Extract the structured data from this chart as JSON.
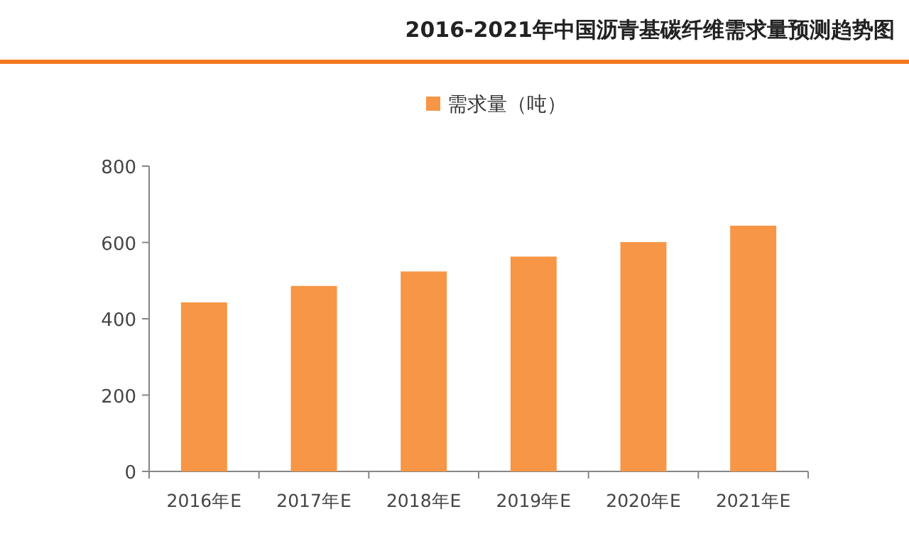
{
  "chart_data": {
    "type": "bar",
    "title": "2016-2021年中国沥青基碳纤维需求量预测趋势图",
    "categories": [
      "2016年E",
      "2017年E",
      "2018年E",
      "2019年E",
      "2020年E",
      "2021年E"
    ],
    "series": [
      {
        "name": "需求量（吨）",
        "color": "#f79646",
        "values": [
          443,
          486,
          524,
          563,
          601,
          644
        ]
      }
    ],
    "ylim": [
      0,
      800
    ],
    "yticks": [
      0,
      200,
      400,
      600,
      800
    ],
    "grid": false,
    "legend": "top"
  }
}
